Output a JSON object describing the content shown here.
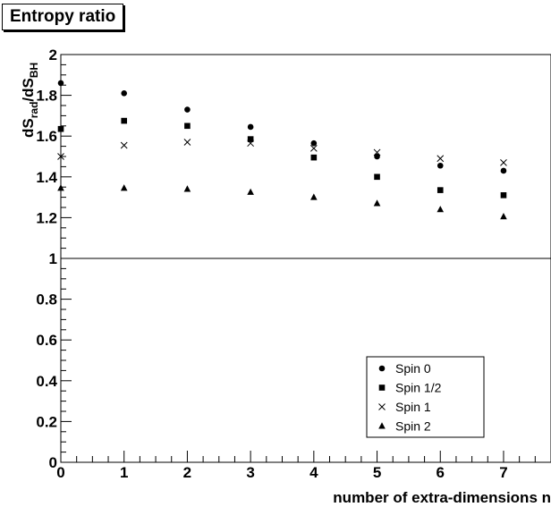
{
  "chart_data": {
    "type": "scatter",
    "title": "Entropy ratio",
    "xlabel": "number of extra-dimensions n",
    "ylabel": {
      "main": "dS",
      "sub1": "rad",
      "slash": "/dS",
      "sub2": "BH"
    },
    "xlim": [
      0,
      7.75
    ],
    "ylim": [
      0,
      2
    ],
    "x_ticks": [
      "0",
      "1",
      "2",
      "3",
      "4",
      "5",
      "6",
      "7"
    ],
    "y_ticks": [
      "0",
      "0.2",
      "0.4",
      "0.6",
      "0.8",
      "1",
      "1.2",
      "1.4",
      "1.6",
      "1.8",
      "2"
    ],
    "reference_line_y": 1,
    "grid": false,
    "legend_position": "bottom-right",
    "series": [
      {
        "name": "Spin 0",
        "marker": "circle",
        "points": [
          [
            0,
            1.86
          ],
          [
            1,
            1.81
          ],
          [
            2,
            1.73
          ],
          [
            3,
            1.645
          ],
          [
            4,
            1.565
          ],
          [
            5,
            1.5
          ],
          [
            6,
            1.455
          ],
          [
            7,
            1.43
          ]
        ]
      },
      {
        "name": "Spin 1/2",
        "marker": "square",
        "points": [
          [
            0,
            1.635
          ],
          [
            1,
            1.675
          ],
          [
            2,
            1.65
          ],
          [
            3,
            1.585
          ],
          [
            4,
            1.495
          ],
          [
            5,
            1.4
          ],
          [
            6,
            1.335
          ],
          [
            7,
            1.31
          ]
        ]
      },
      {
        "name": "Spin 1",
        "marker": "cross",
        "points": [
          [
            0,
            1.5
          ],
          [
            1,
            1.555
          ],
          [
            2,
            1.57
          ],
          [
            3,
            1.565
          ],
          [
            4,
            1.54
          ],
          [
            5,
            1.52
          ],
          [
            6,
            1.49
          ],
          [
            7,
            1.47
          ]
        ]
      },
      {
        "name": "Spin 2",
        "marker": "triangle",
        "points": [
          [
            0,
            1.345
          ],
          [
            1,
            1.345
          ],
          [
            2,
            1.34
          ],
          [
            3,
            1.325
          ],
          [
            4,
            1.3
          ],
          [
            5,
            1.27
          ],
          [
            6,
            1.24
          ],
          [
            7,
            1.205
          ]
        ]
      }
    ]
  }
}
